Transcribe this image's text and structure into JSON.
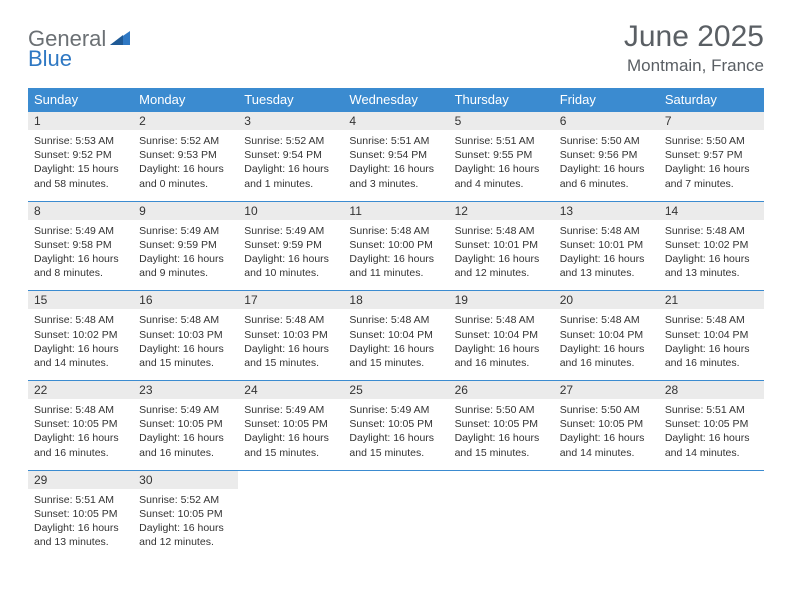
{
  "brand": {
    "general": "General",
    "blue": "Blue"
  },
  "title": "June 2025",
  "location": "Montmain, France",
  "style": {
    "header_bg": "#3b8bd0",
    "header_fg": "#ffffff",
    "daynum_bg": "#ebebeb",
    "border_color": "#3b8bd0",
    "text_color": "#333333",
    "title_color": "#5a5f64",
    "logo_gray": "#6b7074",
    "logo_blue": "#2f78c3",
    "page_bg": "#ffffff",
    "header_fontsize": 13,
    "title_fontsize": 30,
    "location_fontsize": 17,
    "cell_fontsize": 10.5,
    "columns": 7,
    "rows": 5
  },
  "weekdays": [
    "Sunday",
    "Monday",
    "Tuesday",
    "Wednesday",
    "Thursday",
    "Friday",
    "Saturday"
  ],
  "weeks": [
    [
      {
        "n": "1",
        "sr": "Sunrise: 5:53 AM",
        "ss": "Sunset: 9:52 PM",
        "dl": "Daylight: 15 hours and 58 minutes."
      },
      {
        "n": "2",
        "sr": "Sunrise: 5:52 AM",
        "ss": "Sunset: 9:53 PM",
        "dl": "Daylight: 16 hours and 0 minutes."
      },
      {
        "n": "3",
        "sr": "Sunrise: 5:52 AM",
        "ss": "Sunset: 9:54 PM",
        "dl": "Daylight: 16 hours and 1 minutes."
      },
      {
        "n": "4",
        "sr": "Sunrise: 5:51 AM",
        "ss": "Sunset: 9:54 PM",
        "dl": "Daylight: 16 hours and 3 minutes."
      },
      {
        "n": "5",
        "sr": "Sunrise: 5:51 AM",
        "ss": "Sunset: 9:55 PM",
        "dl": "Daylight: 16 hours and 4 minutes."
      },
      {
        "n": "6",
        "sr": "Sunrise: 5:50 AM",
        "ss": "Sunset: 9:56 PM",
        "dl": "Daylight: 16 hours and 6 minutes."
      },
      {
        "n": "7",
        "sr": "Sunrise: 5:50 AM",
        "ss": "Sunset: 9:57 PM",
        "dl": "Daylight: 16 hours and 7 minutes."
      }
    ],
    [
      {
        "n": "8",
        "sr": "Sunrise: 5:49 AM",
        "ss": "Sunset: 9:58 PM",
        "dl": "Daylight: 16 hours and 8 minutes."
      },
      {
        "n": "9",
        "sr": "Sunrise: 5:49 AM",
        "ss": "Sunset: 9:59 PM",
        "dl": "Daylight: 16 hours and 9 minutes."
      },
      {
        "n": "10",
        "sr": "Sunrise: 5:49 AM",
        "ss": "Sunset: 9:59 PM",
        "dl": "Daylight: 16 hours and 10 minutes."
      },
      {
        "n": "11",
        "sr": "Sunrise: 5:48 AM",
        "ss": "Sunset: 10:00 PM",
        "dl": "Daylight: 16 hours and 11 minutes."
      },
      {
        "n": "12",
        "sr": "Sunrise: 5:48 AM",
        "ss": "Sunset: 10:01 PM",
        "dl": "Daylight: 16 hours and 12 minutes."
      },
      {
        "n": "13",
        "sr": "Sunrise: 5:48 AM",
        "ss": "Sunset: 10:01 PM",
        "dl": "Daylight: 16 hours and 13 minutes."
      },
      {
        "n": "14",
        "sr": "Sunrise: 5:48 AM",
        "ss": "Sunset: 10:02 PM",
        "dl": "Daylight: 16 hours and 13 minutes."
      }
    ],
    [
      {
        "n": "15",
        "sr": "Sunrise: 5:48 AM",
        "ss": "Sunset: 10:02 PM",
        "dl": "Daylight: 16 hours and 14 minutes."
      },
      {
        "n": "16",
        "sr": "Sunrise: 5:48 AM",
        "ss": "Sunset: 10:03 PM",
        "dl": "Daylight: 16 hours and 15 minutes."
      },
      {
        "n": "17",
        "sr": "Sunrise: 5:48 AM",
        "ss": "Sunset: 10:03 PM",
        "dl": "Daylight: 16 hours and 15 minutes."
      },
      {
        "n": "18",
        "sr": "Sunrise: 5:48 AM",
        "ss": "Sunset: 10:04 PM",
        "dl": "Daylight: 16 hours and 15 minutes."
      },
      {
        "n": "19",
        "sr": "Sunrise: 5:48 AM",
        "ss": "Sunset: 10:04 PM",
        "dl": "Daylight: 16 hours and 16 minutes."
      },
      {
        "n": "20",
        "sr": "Sunrise: 5:48 AM",
        "ss": "Sunset: 10:04 PM",
        "dl": "Daylight: 16 hours and 16 minutes."
      },
      {
        "n": "21",
        "sr": "Sunrise: 5:48 AM",
        "ss": "Sunset: 10:04 PM",
        "dl": "Daylight: 16 hours and 16 minutes."
      }
    ],
    [
      {
        "n": "22",
        "sr": "Sunrise: 5:48 AM",
        "ss": "Sunset: 10:05 PM",
        "dl": "Daylight: 16 hours and 16 minutes."
      },
      {
        "n": "23",
        "sr": "Sunrise: 5:49 AM",
        "ss": "Sunset: 10:05 PM",
        "dl": "Daylight: 16 hours and 16 minutes."
      },
      {
        "n": "24",
        "sr": "Sunrise: 5:49 AM",
        "ss": "Sunset: 10:05 PM",
        "dl": "Daylight: 16 hours and 15 minutes."
      },
      {
        "n": "25",
        "sr": "Sunrise: 5:49 AM",
        "ss": "Sunset: 10:05 PM",
        "dl": "Daylight: 16 hours and 15 minutes."
      },
      {
        "n": "26",
        "sr": "Sunrise: 5:50 AM",
        "ss": "Sunset: 10:05 PM",
        "dl": "Daylight: 16 hours and 15 minutes."
      },
      {
        "n": "27",
        "sr": "Sunrise: 5:50 AM",
        "ss": "Sunset: 10:05 PM",
        "dl": "Daylight: 16 hours and 14 minutes."
      },
      {
        "n": "28",
        "sr": "Sunrise: 5:51 AM",
        "ss": "Sunset: 10:05 PM",
        "dl": "Daylight: 16 hours and 14 minutes."
      }
    ],
    [
      {
        "n": "29",
        "sr": "Sunrise: 5:51 AM",
        "ss": "Sunset: 10:05 PM",
        "dl": "Daylight: 16 hours and 13 minutes."
      },
      {
        "n": "30",
        "sr": "Sunrise: 5:52 AM",
        "ss": "Sunset: 10:05 PM",
        "dl": "Daylight: 16 hours and 12 minutes."
      },
      null,
      null,
      null,
      null,
      null
    ]
  ]
}
